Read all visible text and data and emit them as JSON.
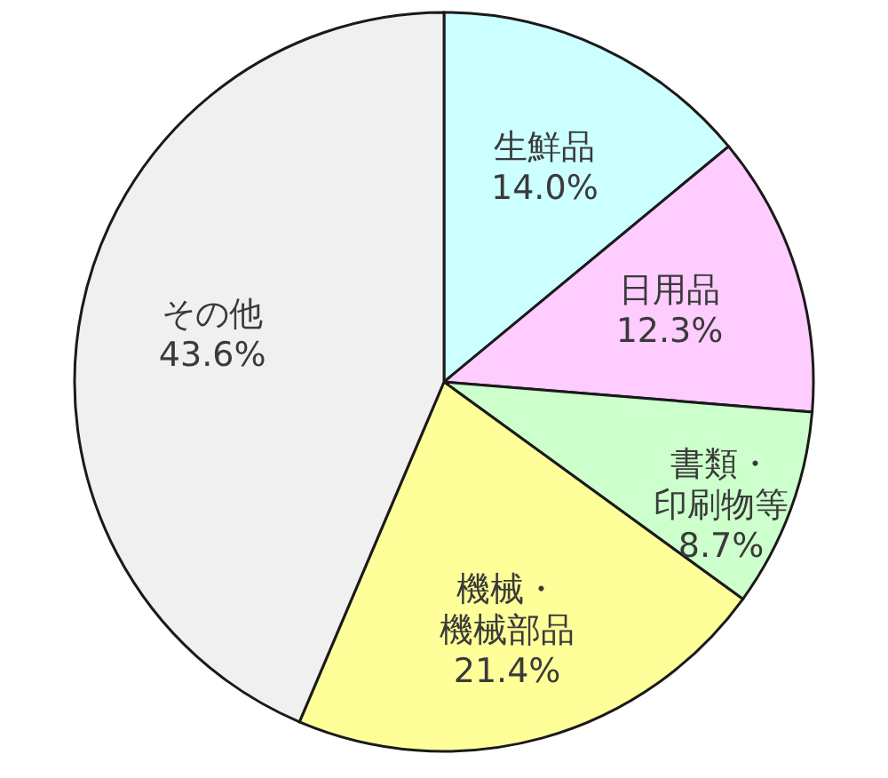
{
  "chart_data": {
    "type": "pie",
    "categories": [
      "生鮮品",
      "日用品",
      "書類・印刷物等",
      "機械・機械部品",
      "その他"
    ],
    "values": [
      14.0,
      12.3,
      8.7,
      21.4,
      43.6
    ],
    "value_labels": [
      "14.0%",
      "12.3%",
      "8.7%",
      "21.4%",
      "43.6%"
    ],
    "colors": [
      "#ccffff",
      "#ffccff",
      "#ccffcc",
      "#ffff99",
      "#f0f0f0"
    ]
  }
}
